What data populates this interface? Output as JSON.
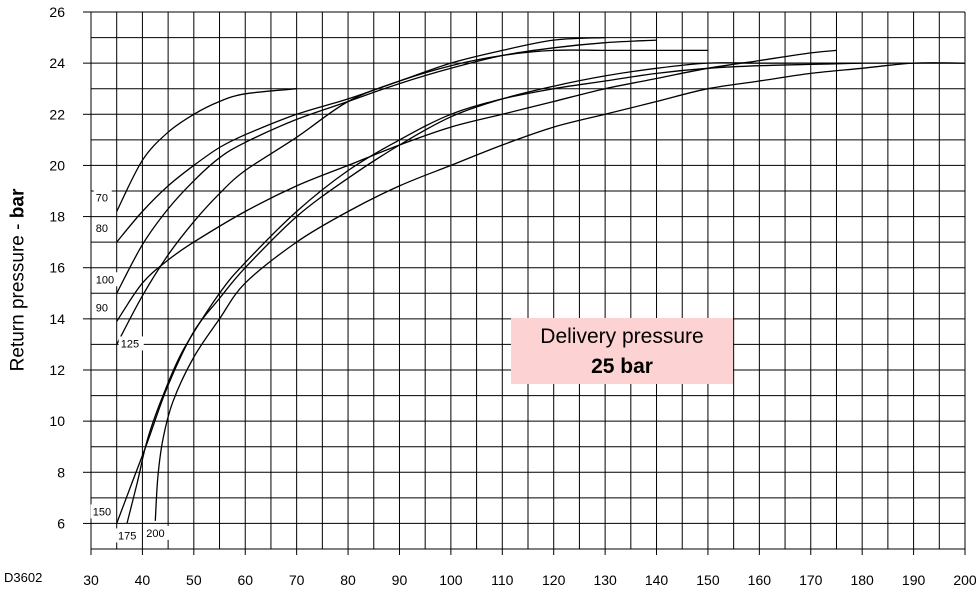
{
  "chart_data": {
    "type": "line",
    "code": "D3602",
    "ylabel_prefix": "Return pressure - ",
    "ylabel_unit": "bar",
    "annotation": {
      "line1": "Delivery pressure",
      "line2": "25 bar"
    },
    "xlim": [
      30,
      200
    ],
    "ylim": [
      5,
      26
    ],
    "x_ticks": [
      30,
      40,
      50,
      60,
      70,
      80,
      90,
      100,
      110,
      120,
      130,
      140,
      150,
      160,
      170,
      180,
      190,
      200
    ],
    "y_ticks": [
      6,
      8,
      10,
      12,
      14,
      16,
      18,
      20,
      22,
      24,
      26
    ],
    "grid": true,
    "series": [
      {
        "name": "70",
        "points": [
          [
            35,
            18.2
          ],
          [
            40,
            20.2
          ],
          [
            45,
            21.3
          ],
          [
            50,
            22.0
          ],
          [
            55,
            22.5
          ],
          [
            60,
            22.8
          ],
          [
            70,
            23.0
          ]
        ]
      },
      {
        "name": "80",
        "points": [
          [
            35,
            17.0
          ],
          [
            40,
            18.2
          ],
          [
            45,
            19.2
          ],
          [
            50,
            20.0
          ],
          [
            55,
            20.7
          ],
          [
            60,
            21.2
          ],
          [
            70,
            22.0
          ],
          [
            80,
            22.6
          ],
          [
            90,
            23.3
          ],
          [
            100,
            24.0
          ],
          [
            110,
            24.5
          ],
          [
            120,
            24.9
          ],
          [
            130,
            25.0
          ]
        ]
      },
      {
        "name": "100",
        "points": [
          [
            35,
            15.0
          ],
          [
            40,
            16.9
          ],
          [
            45,
            18.3
          ],
          [
            50,
            19.4
          ],
          [
            55,
            20.3
          ],
          [
            60,
            20.9
          ],
          [
            70,
            21.8
          ],
          [
            80,
            22.5
          ],
          [
            90,
            23.2
          ],
          [
            100,
            23.8
          ],
          [
            110,
            24.3
          ],
          [
            120,
            24.6
          ],
          [
            130,
            24.8
          ],
          [
            140,
            24.9
          ]
        ]
      },
      {
        "name": "90",
        "points": [
          [
            35,
            13.9
          ],
          [
            40,
            15.4
          ],
          [
            45,
            16.3
          ],
          [
            50,
            17.0
          ],
          [
            60,
            18.2
          ],
          [
            70,
            19.2
          ],
          [
            80,
            20.0
          ],
          [
            90,
            20.8
          ],
          [
            100,
            21.5
          ],
          [
            110,
            22.0
          ],
          [
            120,
            22.5
          ],
          [
            130,
            23.0
          ],
          [
            140,
            23.4
          ],
          [
            150,
            23.8
          ],
          [
            160,
            24.1
          ],
          [
            170,
            24.4
          ],
          [
            175,
            24.5
          ]
        ]
      },
      {
        "name": "125",
        "points": [
          [
            35,
            13.0
          ],
          [
            40,
            14.9
          ],
          [
            45,
            16.5
          ],
          [
            50,
            17.8
          ],
          [
            55,
            18.9
          ],
          [
            60,
            19.8
          ],
          [
            70,
            21.1
          ],
          [
            80,
            22.5
          ],
          [
            90,
            23.3
          ],
          [
            100,
            23.9
          ],
          [
            110,
            24.3
          ],
          [
            120,
            24.5
          ],
          [
            130,
            24.5
          ],
          [
            140,
            24.5
          ],
          [
            150,
            24.5
          ]
        ]
      },
      {
        "name": "150",
        "points": [
          [
            35,
            6.0
          ],
          [
            38,
            7.6
          ],
          [
            41,
            9.2
          ],
          [
            45,
            11.4
          ],
          [
            50,
            13.5
          ],
          [
            55,
            14.8
          ],
          [
            60,
            16.0
          ],
          [
            70,
            18.0
          ],
          [
            80,
            19.5
          ],
          [
            90,
            20.8
          ],
          [
            100,
            21.9
          ],
          [
            110,
            22.6
          ],
          [
            120,
            23.1
          ],
          [
            130,
            23.5
          ],
          [
            140,
            23.8
          ],
          [
            150,
            24.0
          ],
          [
            160,
            24.0
          ],
          [
            170,
            24.0
          ],
          [
            180,
            24.0
          ],
          [
            190,
            24.0
          ],
          [
            200,
            24.0
          ]
        ]
      },
      {
        "name": "175",
        "points": [
          [
            37,
            6.0
          ],
          [
            39,
            7.6
          ],
          [
            41,
            9.3
          ],
          [
            44,
            11.0
          ],
          [
            48,
            12.8
          ],
          [
            55,
            15.0
          ],
          [
            60,
            16.2
          ],
          [
            70,
            18.2
          ],
          [
            80,
            19.8
          ],
          [
            90,
            21.0
          ],
          [
            100,
            22.0
          ],
          [
            110,
            22.6
          ],
          [
            120,
            23.0
          ],
          [
            130,
            23.3
          ],
          [
            140,
            23.6
          ],
          [
            150,
            23.8
          ],
          [
            160,
            23.9
          ],
          [
            170,
            23.95
          ],
          [
            180,
            24.0
          ]
        ]
      },
      {
        "name": "200",
        "points": [
          [
            42.5,
            6.1
          ],
          [
            43,
            7.8
          ],
          [
            44,
            9.3
          ],
          [
            46,
            10.8
          ],
          [
            50,
            12.5
          ],
          [
            55,
            14.0
          ],
          [
            60,
            15.4
          ],
          [
            70,
            17.0
          ],
          [
            80,
            18.2
          ],
          [
            90,
            19.2
          ],
          [
            100,
            20.0
          ],
          [
            110,
            20.8
          ],
          [
            120,
            21.5
          ],
          [
            130,
            22.0
          ],
          [
            140,
            22.5
          ],
          [
            150,
            23.0
          ],
          [
            160,
            23.3
          ],
          [
            170,
            23.6
          ],
          [
            180,
            23.8
          ],
          [
            190,
            24.0
          ],
          [
            200,
            24.0
          ]
        ]
      }
    ]
  }
}
